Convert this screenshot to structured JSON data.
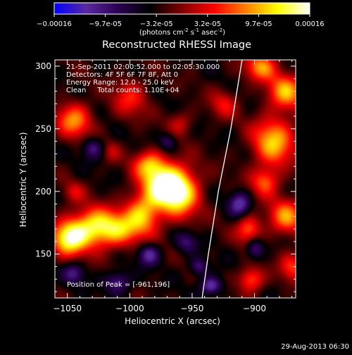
{
  "colorbar": {
    "ticks": [
      "-0.00016",
      "-9.7e-05",
      "-3.2e-05",
      "3.2e-05",
      "9.7e-05",
      "0.00016"
    ],
    "unit_parts": [
      "(photons cm",
      "-2",
      " s",
      "-1",
      " asec",
      "-2",
      ")"
    ],
    "stops": [
      "#0000ff",
      "#5a2aa0",
      "#2a0050",
      "#000000",
      "#800000",
      "#ff0000",
      "#ff8000",
      "#ffff00",
      "#ffffff"
    ]
  },
  "footer": {
    "date": "29-Aug-2013 06:30"
  },
  "chart_data": {
    "type": "heatmap",
    "title": "Reconstructed RHESSI Image",
    "xlabel": "Heliocentric X (arcsec)",
    "ylabel": "Heliocentric Y (arcsec)",
    "xlim": [
      -1060,
      -867
    ],
    "ylim": [
      115,
      305
    ],
    "xticks": [
      -1050,
      -1000,
      -950,
      -900
    ],
    "xtick_labels": [
      "−1050",
      "−1000",
      "−950",
      "−900"
    ],
    "yticks": [
      150,
      200,
      250,
      300
    ],
    "ytick_labels": [
      "150",
      "200",
      "250",
      "300"
    ],
    "annotations": [
      "21-Sep-2011 02:00:52.000 to 02:05:30.000",
      "Detectors: 4F 5F 6F 7F 8F, Att 0",
      "Energy Range: 12.0 - 25.0 keV",
      "Clean     Total counts: 1.10E+04"
    ],
    "peak_label": "Position of Peak = [-961,196]",
    "limb_curve": [
      [
        -942,
        115
      ],
      [
        -937,
        150
      ],
      [
        -929,
        200
      ],
      [
        -919,
        250
      ],
      [
        -910,
        305
      ]
    ],
    "intensity_range": [
      -0.00016,
      0.00016
    ],
    "blobs": [
      {
        "x": -1049,
        "y": 163,
        "sx": 10,
        "sy": 10,
        "a": 0.00016
      },
      {
        "x": -1030,
        "y": 172,
        "sx": 12,
        "sy": 11,
        "a": 0.00013
      },
      {
        "x": -1010,
        "y": 170,
        "sx": 12,
        "sy": 10,
        "a": 0.00011
      },
      {
        "x": -990,
        "y": 182,
        "sx": 10,
        "sy": 12,
        "a": 0.00012
      },
      {
        "x": -975,
        "y": 205,
        "sx": 11,
        "sy": 12,
        "a": 0.00015
      },
      {
        "x": -960,
        "y": 200,
        "sx": 11,
        "sy": 14,
        "a": 0.00016
      },
      {
        "x": -985,
        "y": 222,
        "sx": 9,
        "sy": 8,
        "a": 0.0001
      },
      {
        "x": -1045,
        "y": 257,
        "sx": 10,
        "sy": 10,
        "a": 0.00011
      },
      {
        "x": -1045,
        "y": 200,
        "sx": 6,
        "sy": 6,
        "a": 5e-05
      },
      {
        "x": -1000,
        "y": 275,
        "sx": 10,
        "sy": 11,
        "a": 7e-05
      },
      {
        "x": -960,
        "y": 255,
        "sx": 7,
        "sy": 7,
        "a": 5e-05
      },
      {
        "x": -1015,
        "y": 232,
        "sx": 5,
        "sy": 6,
        "a": 4e-05
      },
      {
        "x": -903,
        "y": 130,
        "sx": 7,
        "sy": 7,
        "a": 0.0001
      },
      {
        "x": -905,
        "y": 170,
        "sx": 7,
        "sy": 8,
        "a": 0.0001
      },
      {
        "x": -885,
        "y": 240,
        "sx": 12,
        "sy": 14,
        "a": 0.00013
      },
      {
        "x": -875,
        "y": 180,
        "sx": 10,
        "sy": 10,
        "a": 0.00011
      },
      {
        "x": -875,
        "y": 280,
        "sx": 10,
        "sy": 10,
        "a": 0.00012
      },
      {
        "x": -895,
        "y": 300,
        "sx": 9,
        "sy": 8,
        "a": 0.00011
      },
      {
        "x": -892,
        "y": 208,
        "sx": 8,
        "sy": 8,
        "a": 9e-05
      },
      {
        "x": -870,
        "y": 140,
        "sx": 7,
        "sy": 8,
        "a": 8e-05
      },
      {
        "x": -925,
        "y": 270,
        "sx": 8,
        "sy": 8,
        "a": 6e-05
      },
      {
        "x": -1030,
        "y": 235,
        "sx": 6,
        "sy": 6,
        "a": -7e-05
      },
      {
        "x": -985,
        "y": 150,
        "sx": 6,
        "sy": 6,
        "a": -9e-05
      },
      {
        "x": -1010,
        "y": 128,
        "sx": 7,
        "sy": 6,
        "a": -8e-05
      },
      {
        "x": -912,
        "y": 190,
        "sx": 6,
        "sy": 7,
        "a": -9e-05
      },
      {
        "x": -900,
        "y": 155,
        "sx": 5,
        "sy": 6,
        "a": -8e-05
      },
      {
        "x": -935,
        "y": 125,
        "sx": 6,
        "sy": 5,
        "a": -0.0001
      },
      {
        "x": -945,
        "y": 140,
        "sx": 5,
        "sy": 5,
        "a": -7e-05
      },
      {
        "x": -970,
        "y": 240,
        "sx": 5,
        "sy": 5,
        "a": -6e-05
      },
      {
        "x": -1045,
        "y": 135,
        "sx": 6,
        "sy": 6,
        "a": -7e-05
      },
      {
        "x": -955,
        "y": 160,
        "sx": 6,
        "sy": 6,
        "a": -6e-05
      }
    ]
  }
}
